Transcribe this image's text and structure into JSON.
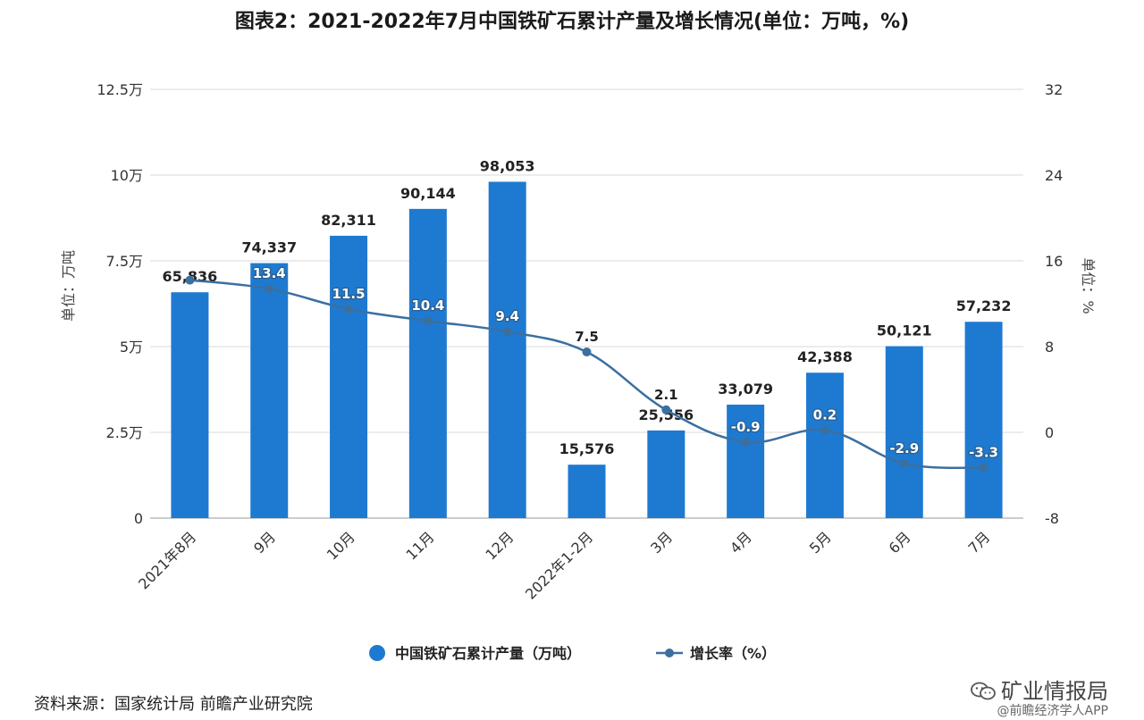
{
  "title": "图表2：2021-2022年7月中国铁矿石累计产量及增长情况(单位：万吨，%)",
  "chart_data": {
    "type": "bar",
    "categories": [
      "2021年8月",
      "9月",
      "10月",
      "11月",
      "12月",
      "2022年1-2月",
      "3月",
      "4月",
      "5月",
      "6月",
      "7月"
    ],
    "series": [
      {
        "name": "中国铁矿石累计产量（万吨）",
        "type": "bar",
        "axis": "left",
        "color": "#1e7ad1",
        "values": [
          65836,
          74337,
          82311,
          90144,
          98053,
          15576,
          25556,
          33079,
          42388,
          50121,
          57232
        ],
        "labels": [
          "65,836",
          "74,337",
          "82,311",
          "90,144",
          "98,053",
          "15,576",
          "25,556",
          "33,079",
          "42,388",
          "50,121",
          "57,232"
        ]
      },
      {
        "name": "增长率（%）",
        "type": "line",
        "axis": "right",
        "color": "#3b6fa0",
        "values": [
          14.2,
          13.4,
          11.5,
          10.4,
          9.4,
          7.5,
          2.1,
          -0.9,
          0.2,
          -2.9,
          -3.3
        ],
        "labels": [
          "",
          "13.4",
          "11.5",
          "10.4",
          "9.4",
          "7.5",
          "2.1",
          "-0.9",
          "0.2",
          "-2.9",
          "-3.3"
        ]
      }
    ],
    "y_left": {
      "label": "单位：万吨",
      "ylim": [
        0,
        125000
      ],
      "ticks": [
        0,
        25000,
        50000,
        75000,
        100000,
        125000
      ],
      "tick_labels": [
        "0",
        "2.5万",
        "5万",
        "7.5万",
        "10万",
        "12.5万"
      ]
    },
    "y_right": {
      "label": "单位：%",
      "ylim": [
        -8,
        32
      ],
      "ticks": [
        -8,
        0,
        8,
        16,
        24,
        32
      ],
      "tick_labels": [
        "-8",
        "0",
        "8",
        "16",
        "24",
        "32"
      ]
    },
    "grid": true,
    "legend_position": "bottom"
  },
  "footer": {
    "source": "资料来源：国家统计局 前瞻产业研究院",
    "wechat_name": "矿业情报局",
    "credit": "@前瞻经济学人APP"
  }
}
